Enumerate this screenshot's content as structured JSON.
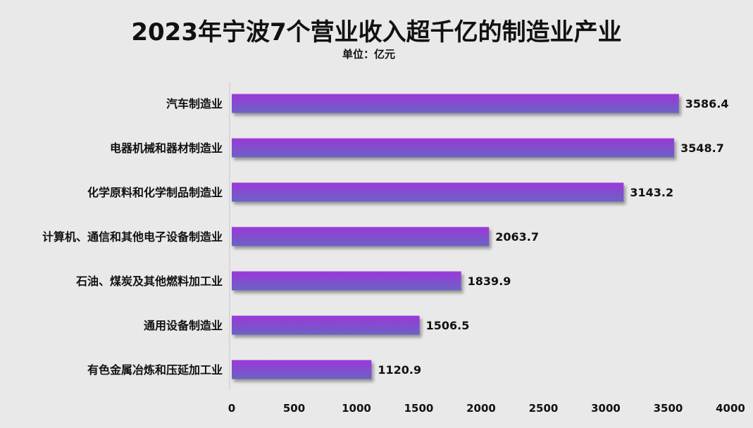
{
  "chart_data": {
    "type": "bar",
    "orientation": "horizontal",
    "title": "2023年宁波7个营业收入超千亿的制造业产业",
    "subtitle": "单位：亿元",
    "categories": [
      "汽车制造业",
      "电器机械和器材制造业",
      "化学原料和化学制品制造业",
      "计算机、通信和其他电子设备制造业",
      "石油、煤炭及其他燃料加工业",
      "通用设备制造业",
      "有色金属冶炼和压延加工业"
    ],
    "values": [
      3586.4,
      3548.7,
      3143.2,
      2063.7,
      1839.9,
      1506.5,
      1120.9
    ],
    "value_labels": [
      "3586.4",
      "3548.7",
      "3143.2",
      "2063.7",
      "1839.9",
      "1506.5",
      "1120.9"
    ],
    "xlim": [
      0,
      4000
    ],
    "x_ticks": [
      "0",
      "500",
      "1000",
      "1500",
      "2000",
      "2500",
      "3000",
      "3500",
      "4000"
    ],
    "grid": false,
    "bar_color_top": "#9b38d8",
    "bar_color_bottom": "#6a63c4"
  }
}
